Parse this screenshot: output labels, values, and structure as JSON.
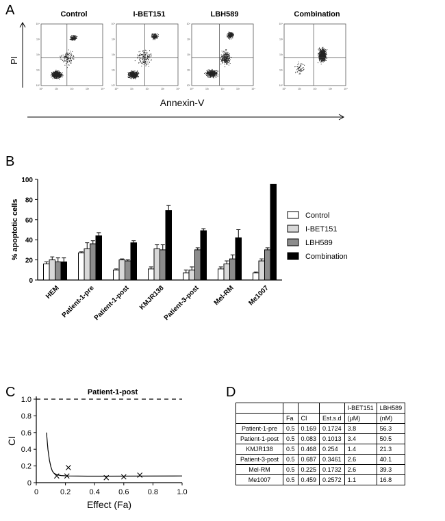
{
  "panels": {
    "a": "A",
    "b": "B",
    "c": "C",
    "d": "D"
  },
  "flow": {
    "plots": [
      {
        "title": "Control"
      },
      {
        "title": "I-BET151"
      },
      {
        "title": "LBH589"
      },
      {
        "title": "Combination"
      }
    ],
    "ylabel": "PI",
    "xlabel": "Annexin-V",
    "tick_labels": [
      "10⁰",
      "10¹",
      "10²",
      "10³",
      "10⁴"
    ]
  },
  "chart_data": [
    {
      "type": "bar",
      "title": "",
      "xlabel": "",
      "ylabel": "% apoptotic cells",
      "ylim": [
        0,
        100
      ],
      "yticks": [
        0,
        20,
        40,
        60,
        80,
        100
      ],
      "categories": [
        "HEM",
        "Patient-1-pre",
        "Patient-1-post",
        "KMJR138",
        "Patient-3-post",
        "Mel-RM",
        "Me1007"
      ],
      "series": [
        {
          "name": "Control",
          "color": "#ffffff",
          "values": [
            16,
            27,
            10,
            11,
            7,
            11,
            7
          ],
          "errors": [
            2,
            1,
            1,
            2,
            3,
            2,
            1
          ]
        },
        {
          "name": "I-BET151",
          "color": "#d8d8d8",
          "values": [
            20,
            31,
            20,
            31,
            10,
            16,
            19
          ],
          "errors": [
            3,
            6,
            1,
            4,
            3,
            3,
            2
          ]
        },
        {
          "name": "LBH589",
          "color": "#8c8c8c",
          "values": [
            18,
            36,
            19,
            30,
            30,
            21,
            30
          ],
          "errors": [
            4,
            3,
            1,
            5,
            2,
            4,
            2
          ]
        },
        {
          "name": "Combination",
          "color": "#000000",
          "values": [
            18,
            44,
            37,
            69,
            49,
            42,
            95
          ],
          "errors": [
            4,
            3,
            2,
            5,
            2,
            8,
            0
          ]
        }
      ]
    },
    {
      "type": "scatter",
      "title": "Patient-1-post",
      "xlabel": "Effect (Fa)",
      "ylabel": "CI",
      "xlim": [
        0,
        1.0
      ],
      "ylim": [
        0,
        1.0
      ],
      "xticks": [
        0,
        0.2,
        0.4,
        0.6,
        0.8,
        1.0
      ],
      "yticks": [
        0,
        0.2,
        0.4,
        0.6,
        0.8,
        1.0
      ],
      "tick_labels_x": [
        "0",
        "0.2",
        "0.4",
        "0.6",
        "0.8",
        "1.0"
      ],
      "tick_labels_y": [
        "0",
        "0.2",
        "0.4",
        "0.6",
        "0.8",
        "1.0"
      ],
      "reference_line": 1.0,
      "points": [
        {
          "x": 0.14,
          "y": 0.08
        },
        {
          "x": 0.21,
          "y": 0.08
        },
        {
          "x": 0.22,
          "y": 0.18
        },
        {
          "x": 0.48,
          "y": 0.06
        },
        {
          "x": 0.6,
          "y": 0.07
        },
        {
          "x": 0.71,
          "y": 0.09
        }
      ],
      "curve": [
        {
          "x": 0.07,
          "y": 0.6
        },
        {
          "x": 0.08,
          "y": 0.4
        },
        {
          "x": 0.09,
          "y": 0.27
        },
        {
          "x": 0.1,
          "y": 0.19
        },
        {
          "x": 0.11,
          "y": 0.14
        },
        {
          "x": 0.12,
          "y": 0.115
        },
        {
          "x": 0.14,
          "y": 0.095
        },
        {
          "x": 0.17,
          "y": 0.085
        },
        {
          "x": 0.22,
          "y": 0.08
        },
        {
          "x": 0.35,
          "y": 0.078
        },
        {
          "x": 0.5,
          "y": 0.078
        },
        {
          "x": 0.7,
          "y": 0.079
        },
        {
          "x": 1.0,
          "y": 0.08
        }
      ]
    }
  ],
  "table": {
    "header_top": [
      "",
      "",
      "",
      "",
      "I-BET151",
      "LBH589"
    ],
    "header_bottom": [
      "",
      "Fa",
      "CI",
      "Est.s.d",
      "(μM)",
      "(nM)"
    ],
    "rows": [
      [
        "Patient-1-pre",
        "0.5",
        "0.169",
        "0.1724",
        "3.8",
        "56.3"
      ],
      [
        "Patient-1-post",
        "0.5",
        "0.083",
        "0.1013",
        "3.4",
        "50.5"
      ],
      [
        "KMJR138",
        "0.5",
        "0.468",
        "0.254",
        "1.4",
        "21.3"
      ],
      [
        "Patient-3-post",
        "0.5",
        "0.687",
        "0.3461",
        "2.6",
        "40.1"
      ],
      [
        "Mel-RM",
        "0.5",
        "0.225",
        "0.1732",
        "2.6",
        "39.3"
      ],
      [
        "Me1007",
        "0.5",
        "0.459",
        "0.2572",
        "1.1",
        "16.8"
      ]
    ]
  }
}
